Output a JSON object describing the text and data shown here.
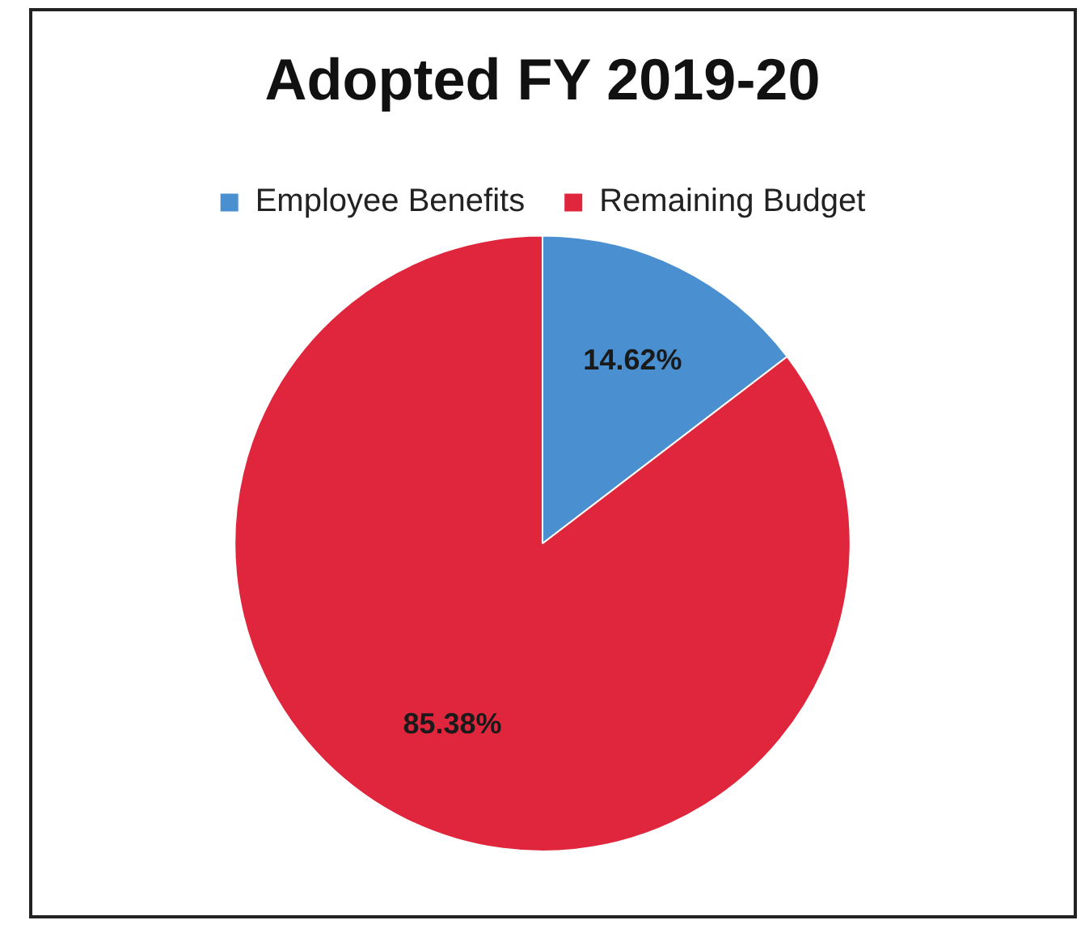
{
  "chart_data": {
    "type": "pie",
    "title": "Adopted FY 2019-20",
    "categories": [
      "Employee Benefits",
      "Remaining Budget"
    ],
    "values": [
      14.62,
      85.38
    ],
    "value_labels": [
      "14.62%",
      "85.38%"
    ],
    "colors": [
      "#4a90d0",
      "#e0263c"
    ],
    "legend": "top"
  }
}
